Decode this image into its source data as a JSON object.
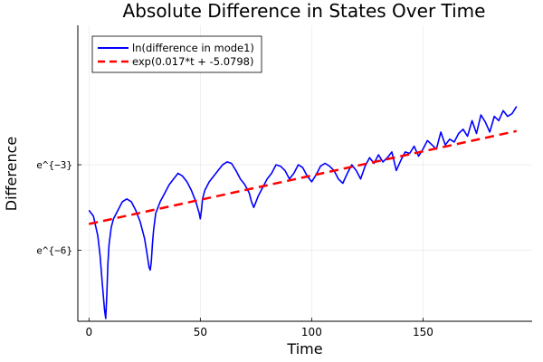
{
  "chart_data": {
    "type": "line",
    "title": "Absolute Difference in States Over Time",
    "xlabel": "Time",
    "ylabel": "Difference",
    "xlim": [
      -5,
      199
    ],
    "ylim": [
      -8.5,
      1.9
    ],
    "yscale": "log-e",
    "grid": true,
    "legend_position": "top-left",
    "x_ticks": [
      0,
      50,
      100,
      150
    ],
    "x_tick_labels": [
      "0",
      "50",
      "100",
      "150"
    ],
    "y_ticks": [
      -3,
      -6
    ],
    "y_tick_labels": [
      "e^{−3}",
      "e^{−6}"
    ],
    "colors": {
      "series1": "#0000ff",
      "series2": "#ff0000"
    },
    "series": [
      {
        "name": "ln(difference in mode1)",
        "style": "solid",
        "color": "#0000ff",
        "x": [
          0,
          2,
          4,
          5,
          6,
          7,
          7.5,
          8,
          8.5,
          9,
          10,
          11,
          13,
          15,
          17,
          19,
          21,
          23,
          25,
          26,
          27,
          27.5,
          28,
          28.5,
          29,
          30,
          32,
          34,
          36,
          38,
          40,
          42,
          44,
          46,
          48,
          49.5,
          50,
          50.5,
          51,
          52,
          54,
          56,
          58,
          60,
          62,
          64,
          66,
          68,
          70,
          72,
          73,
          74,
          75,
          76,
          78,
          80,
          82,
          84,
          86,
          88,
          90,
          92,
          94,
          96,
          98,
          100,
          102,
          104,
          106,
          108,
          110,
          112,
          114,
          116,
          118,
          120,
          122,
          124,
          126,
          128,
          130,
          132,
          134,
          136,
          138,
          140,
          142,
          144,
          146,
          148,
          150,
          152,
          154,
          156,
          158,
          160,
          162,
          164,
          166,
          168,
          170,
          172,
          174,
          176,
          178,
          180,
          182,
          184,
          186,
          188,
          190,
          192
        ],
        "y": [
          -4.6,
          -4.8,
          -5.5,
          -6.2,
          -7.2,
          -8.1,
          -8.4,
          -7.6,
          -6.5,
          -5.8,
          -5.2,
          -4.9,
          -4.6,
          -4.3,
          -4.2,
          -4.3,
          -4.6,
          -5.0,
          -5.6,
          -6.1,
          -6.6,
          -6.7,
          -6.4,
          -5.8,
          -5.3,
          -4.7,
          -4.3,
          -4.0,
          -3.7,
          -3.5,
          -3.3,
          -3.4,
          -3.6,
          -3.9,
          -4.3,
          -4.7,
          -4.9,
          -4.6,
          -4.2,
          -3.9,
          -3.6,
          -3.4,
          -3.2,
          -3.0,
          -2.9,
          -2.95,
          -3.2,
          -3.5,
          -3.7,
          -4.0,
          -4.3,
          -4.5,
          -4.3,
          -4.1,
          -3.8,
          -3.5,
          -3.3,
          -3.0,
          -3.05,
          -3.2,
          -3.5,
          -3.3,
          -3.0,
          -3.1,
          -3.4,
          -3.6,
          -3.35,
          -3.05,
          -2.95,
          -3.05,
          -3.2,
          -3.5,
          -3.65,
          -3.3,
          -3.0,
          -3.2,
          -3.5,
          -3.05,
          -2.75,
          -2.95,
          -2.65,
          -2.9,
          -2.75,
          -2.55,
          -3.2,
          -2.85,
          -2.55,
          -2.6,
          -2.35,
          -2.7,
          -2.45,
          -2.15,
          -2.3,
          -2.45,
          -1.85,
          -2.3,
          -2.1,
          -2.2,
          -1.9,
          -1.75,
          -2.0,
          -1.45,
          -1.9,
          -1.25,
          -1.5,
          -1.85,
          -1.3,
          -1.45,
          -1.1,
          -1.3,
          -1.2,
          -0.95
        ]
      },
      {
        "name": "exp(0.017*t + -5.0798)",
        "style": "dashed",
        "color": "#ff0000",
        "x": [
          0,
          192
        ],
        "y": [
          -5.0798,
          -1.8158
        ]
      }
    ]
  }
}
